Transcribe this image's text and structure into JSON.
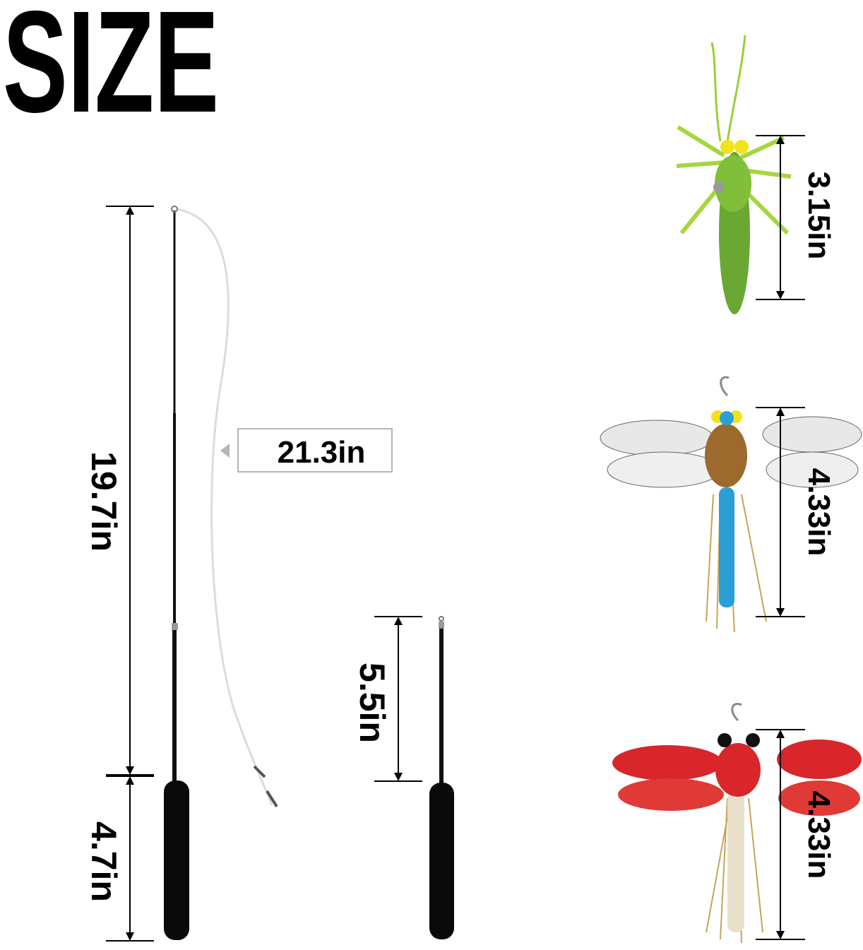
{
  "title": "SIZE",
  "wand": {
    "rod_length": "19.7in",
    "handle_length": "4.7in",
    "string_length": "21.3in"
  },
  "short_wand": {
    "rod_length": "5.5in"
  },
  "attachments": [
    {
      "name": "grasshopper",
      "size": "3.15in",
      "color": "#8cc63f"
    },
    {
      "name": "blue-dragonfly",
      "size": "4.33in",
      "color": "#2a9fd6"
    },
    {
      "name": "red-dragonfly",
      "size": "4.33in",
      "color": "#d8262a"
    }
  ]
}
